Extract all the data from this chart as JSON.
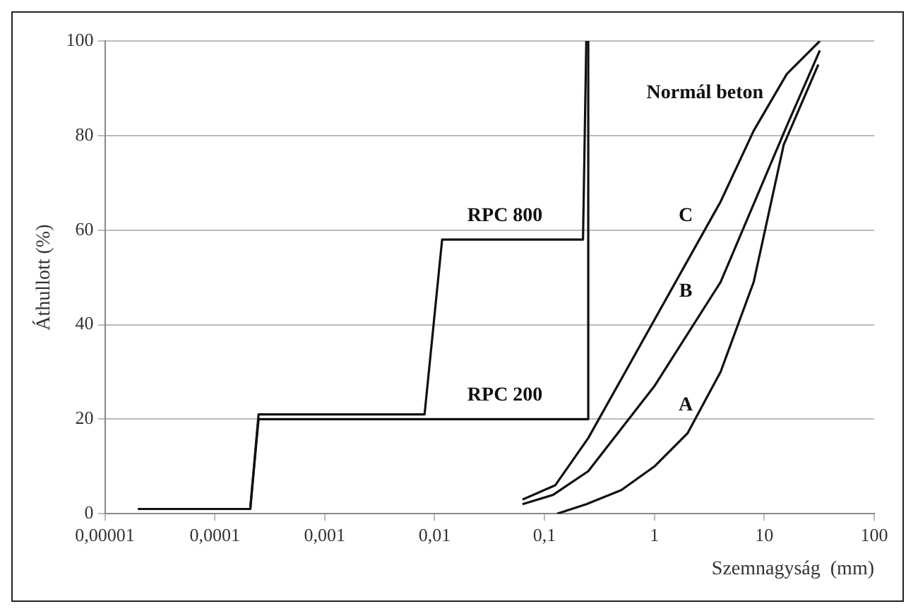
{
  "chart_data": {
    "type": "line",
    "xlabel": "Szemnagyság  (mm)",
    "ylabel": "Áthullott (%)",
    "log": "x",
    "grid": "y",
    "marker": "none",
    "line_style": "solid",
    "legend": false,
    "xlim": [
      1e-05,
      100
    ],
    "xticks": [
      {
        "value": 1e-05,
        "label": "0,00001"
      },
      {
        "value": 0.0001,
        "label": "0,0001"
      },
      {
        "value": 0.001,
        "label": "0,001"
      },
      {
        "value": 0.01,
        "label": "0,01"
      },
      {
        "value": 0.1,
        "label": "0,1"
      },
      {
        "value": 1,
        "label": "1"
      },
      {
        "value": 10,
        "label": "10"
      },
      {
        "value": 100,
        "label": "100"
      }
    ],
    "ylim": [
      0,
      100
    ],
    "yticks": [
      0,
      20,
      40,
      60,
      80,
      100
    ],
    "series": [
      {
        "color": "#111111",
        "x": [
          2e-05,
          0.00021,
          0.00025,
          0.0081,
          0.0117,
          0.224,
          0.24
        ],
        "values": [
          1,
          1,
          21,
          21,
          58,
          58,
          100
        ]
      },
      {
        "color": "#111111",
        "x": [
          2e-05,
          0.00021,
          0.00025,
          0.25,
          0.25
        ],
        "values": [
          1,
          1,
          20,
          20,
          100
        ]
      },
      {
        "color": "#111111",
        "x": [
          0.13,
          0.24,
          0.5,
          1,
          2,
          4,
          8,
          15,
          31
        ],
        "values": [
          0,
          2,
          5,
          10,
          17,
          30,
          49,
          78,
          95
        ]
      },
      {
        "color": "#111111",
        "x": [
          0.063,
          0.12,
          0.25,
          1,
          4,
          16,
          32
        ],
        "values": [
          2,
          4,
          9,
          27,
          49,
          82,
          98
        ]
      },
      {
        "color": "#111111",
        "x": [
          0.063,
          0.125,
          0.25,
          1,
          4,
          8,
          16,
          32
        ],
        "values": [
          3,
          6,
          16,
          41,
          66,
          81,
          93,
          100
        ]
      }
    ],
    "annotations": [
      "RPC 800",
      "RPC 200",
      "C",
      "B",
      "A",
      "Normál beton"
    ]
  }
}
